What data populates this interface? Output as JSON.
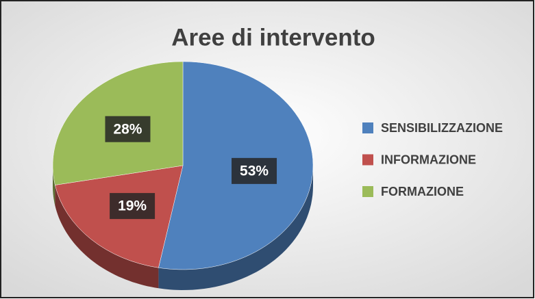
{
  "chart_data": {
    "type": "pie",
    "title": "Aree di intervento",
    "categories": [
      "SENSIBILIZZAZIONE",
      "INFORMAZIONE",
      "FORMAZIONE"
    ],
    "values": [
      53,
      19,
      28
    ],
    "value_labels": [
      "53%",
      "19%",
      "28%"
    ],
    "colors": [
      "#4f81bd",
      "#c0504d",
      "#9bbb59"
    ],
    "legend": "right"
  }
}
